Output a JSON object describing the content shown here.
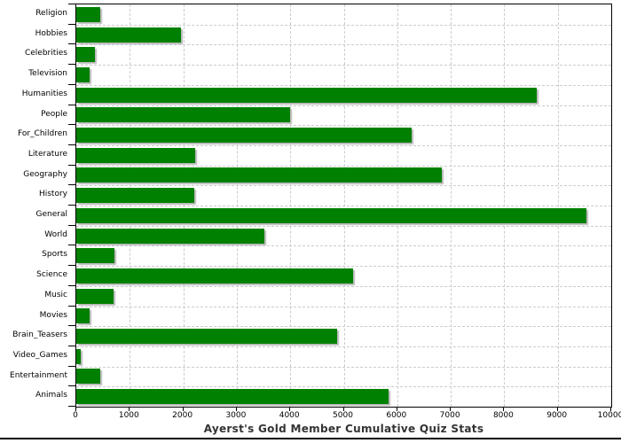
{
  "chart_data": {
    "type": "bar",
    "orientation": "horizontal",
    "title": "Ayerst's Gold Member Cumulative Quiz Stats",
    "categories": [
      "Religion",
      "Hobbies",
      "Celebrities",
      "Television",
      "Humanities",
      "People",
      "For_Children",
      "Literature",
      "Geography",
      "History",
      "General",
      "World",
      "Sports",
      "Science",
      "Music",
      "Movies",
      "Brain_Teasers",
      "Video_Games",
      "Entertainment",
      "Animals"
    ],
    "values": [
      450,
      1950,
      350,
      250,
      8600,
      4000,
      6270,
      2220,
      6830,
      2200,
      9540,
      3520,
      710,
      5180,
      690,
      250,
      4870,
      80,
      450,
      5840
    ],
    "xlim": [
      0,
      10000
    ],
    "x_ticks": [
      0,
      1000,
      2000,
      3000,
      4000,
      5000,
      6000,
      7000,
      8000,
      9000,
      10000
    ],
    "xlabel": "",
    "ylabel": "",
    "grid": "dashed",
    "legend": "none",
    "bar_color": "#008000",
    "shadow_color": "#b8b8b8",
    "gridline_color": "#cccccc",
    "axis_color": "#000000",
    "title_color": "#333333",
    "background": "#ffffff"
  }
}
